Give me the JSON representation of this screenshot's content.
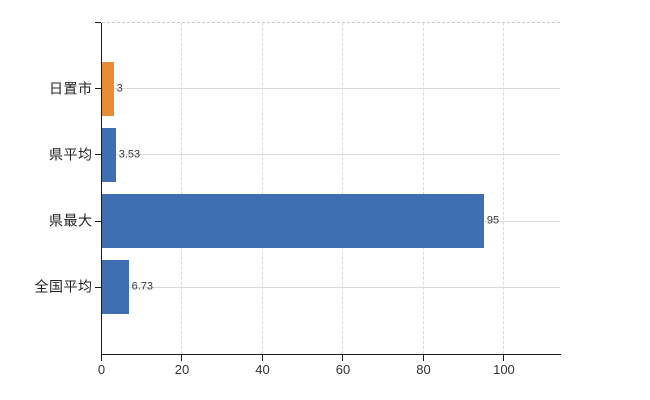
{
  "chart_data": {
    "type": "bar",
    "orientation": "horizontal",
    "title": "",
    "xlabel": "",
    "ylabel": "",
    "categories": [
      "日置市",
      "県平均",
      "県最大",
      "全国平均"
    ],
    "values": [
      3,
      3.53,
      95,
      6.73
    ],
    "value_labels": [
      "3",
      "3.53",
      "95",
      "6.73"
    ],
    "bar_colors": [
      "#EA8C35",
      "#3F6FB3",
      "#3F6FB3",
      "#3F6FB3"
    ],
    "x_ticks": [
      0,
      20,
      40,
      60,
      80,
      100
    ],
    "x_tick_labels": [
      "0",
      "20",
      "40",
      "60",
      "80",
      "100"
    ],
    "xlim": [
      0,
      113.8
    ],
    "grid": true,
    "grid_style": {
      "vertical": "dashed",
      "horizontal": "solid"
    },
    "legend_position": "none",
    "colors": {
      "background": "#ffffff",
      "grid": "#d9d9d9",
      "top_border": "#c9c9c9",
      "axis": "#1a1a1a",
      "value_label": "#3a3a3a",
      "category_label": "#222222",
      "tick_label": "#333333"
    }
  }
}
